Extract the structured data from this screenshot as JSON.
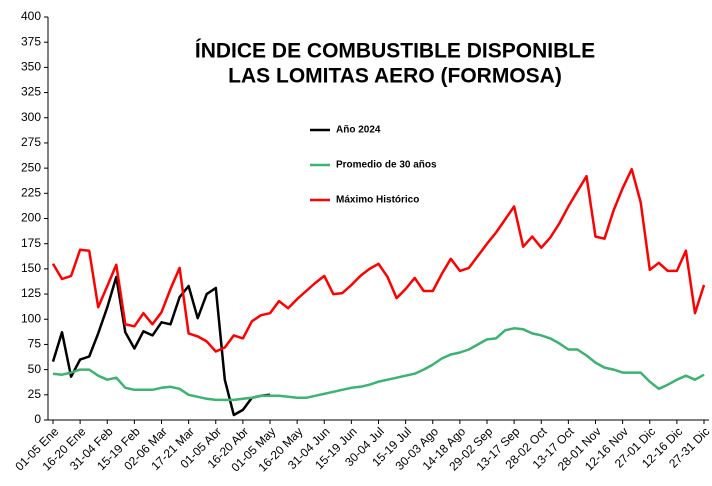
{
  "chart_data": {
    "type": "line",
    "title": [
      "ÍNDICE DE COMBUSTIBLE DISPONIBLE",
      "LAS LOMITAS AERO (FORMOSA)"
    ],
    "categories": [
      "01-05 Ene",
      null,
      null,
      "16-20 Ene",
      null,
      null,
      "31-04 Feb",
      null,
      null,
      "15-19 Feb",
      null,
      null,
      "02-06 Mar",
      null,
      null,
      "17-21 Mar",
      null,
      null,
      "01-05 Abr",
      null,
      null,
      "16-20 Abr",
      null,
      null,
      "01-05 May",
      null,
      null,
      "16-20 May",
      null,
      null,
      "31-04 Jun",
      null,
      null,
      "15-19 Jun",
      null,
      null,
      "30-04 Jul",
      null,
      null,
      "15-19 Jul",
      null,
      null,
      "30-03 Ago",
      null,
      null,
      "14-18 Ago",
      null,
      null,
      "29-02 Sep",
      null,
      null,
      "13-17 Sep",
      null,
      null,
      "28-02 Oct",
      null,
      null,
      "13-17 Oct",
      null,
      null,
      "28-01 Nov",
      null,
      null,
      "12-16 Nov",
      null,
      null,
      "27-01 Dic",
      null,
      null,
      "12-16 Dic",
      null,
      null,
      "27-31 Dic"
    ],
    "series": [
      {
        "name": "Año 2024",
        "color": "#000000",
        "values": [
          58,
          87,
          43,
          60,
          63,
          86,
          112,
          142,
          87,
          71,
          88,
          84,
          97,
          95,
          122,
          133,
          101,
          125,
          131,
          40,
          5,
          10,
          22,
          24,
          25,
          null,
          null,
          null,
          null,
          null,
          null,
          null,
          null,
          null,
          null,
          null,
          null,
          null,
          null,
          null,
          null,
          null,
          null,
          null,
          null,
          null,
          null,
          null,
          null,
          null,
          null,
          null,
          null,
          null,
          null,
          null,
          null,
          null,
          null,
          null,
          null,
          null,
          null,
          null,
          null,
          null,
          null,
          null,
          null,
          null,
          null,
          null,
          null
        ]
      },
      {
        "name": "Promedio de 30 años",
        "color": "#3cb371",
        "values": [
          46,
          45,
          47,
          50,
          50,
          44,
          40,
          42,
          32,
          30,
          30,
          30,
          32,
          33,
          31,
          25,
          23,
          21,
          20,
          20,
          20,
          21,
          22,
          24,
          24,
          24,
          23,
          22,
          22,
          24,
          26,
          28,
          30,
          32,
          33,
          35,
          38,
          40,
          42,
          44,
          46,
          50,
          55,
          61,
          65,
          67,
          70,
          75,
          80,
          81,
          89,
          91,
          90,
          86,
          84,
          81,
          76,
          70,
          70,
          64,
          57,
          52,
          50,
          47,
          47,
          47,
          38,
          31,
          35,
          40,
          44,
          40,
          45
        ]
      },
      {
        "name": "Máximo Histórico",
        "color": "#ff0000",
        "values": [
          155,
          140,
          143,
          169,
          168,
          112,
          133,
          154,
          95,
          93,
          106,
          95,
          107,
          130,
          151,
          86,
          83,
          78,
          68,
          72,
          84,
          81,
          98,
          104,
          106,
          118,
          111,
          120,
          128,
          136,
          143,
          125,
          126,
          134,
          143,
          150,
          155,
          142,
          121,
          130,
          141,
          128,
          128,
          145,
          160,
          148,
          151,
          163,
          175,
          186,
          199,
          212,
          172,
          182,
          171,
          181,
          195,
          212,
          227,
          242,
          182,
          180,
          208,
          230,
          249,
          216,
          149,
          156,
          148,
          148,
          168,
          106,
          134
        ]
      }
    ],
    "ylim": [
      0,
      400
    ],
    "yticks": [
      0,
      25,
      50,
      75,
      100,
      125,
      150,
      175,
      200,
      225,
      250,
      275,
      300,
      325,
      350,
      375,
      400
    ],
    "grid": false
  }
}
